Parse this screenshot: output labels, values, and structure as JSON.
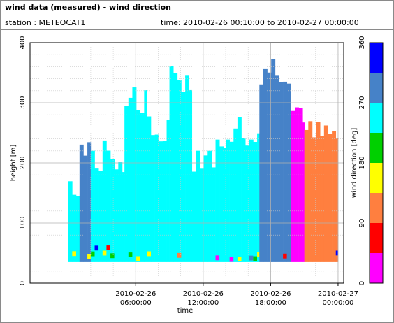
{
  "header": {
    "title": "wind data (measured) - wind direction",
    "station": "station : METEOCAT1",
    "time": "time: 2010-02-26 00:10:00 to 2010-02-27 00:00:00"
  },
  "chart_data": {
    "type": "heatmap",
    "ylabel": "height [m]",
    "xlabel": "time",
    "ylim": [
      0,
      400
    ],
    "yticks": [
      0,
      100,
      200,
      300,
      400
    ],
    "xlim_hours": [
      -3.4,
      24.5
    ],
    "xticks": [
      {
        "hour": 6,
        "line1": "2010-02-26",
        "line2": "06:00:00"
      },
      {
        "hour": 12,
        "line1": "2010-02-26",
        "line2": "12:00:00"
      },
      {
        "hour": 18,
        "line1": "2010-02-26",
        "line2": "18:00:00"
      },
      {
        "hour": 24,
        "line1": "2010-02-27",
        "line2": "00:00:00"
      }
    ],
    "grid": true,
    "colorbar": {
      "label": "wind direction [deg]",
      "min": 0,
      "max": 360,
      "ticks": [
        0,
        90,
        180,
        270,
        360
      ],
      "bands": [
        {
          "from": 0,
          "to": 45,
          "color": "#ff00ff"
        },
        {
          "from": 45,
          "to": 90,
          "color": "#ff0000"
        },
        {
          "from": 90,
          "to": 135,
          "color": "#ff7f3f"
        },
        {
          "from": 135,
          "to": 180,
          "color": "#ffff00"
        },
        {
          "from": 180,
          "to": 225,
          "color": "#00d000"
        },
        {
          "from": 225,
          "to": 270,
          "color": "#00ffff"
        },
        {
          "from": 270,
          "to": 315,
          "color": "#4682c8"
        },
        {
          "from": 315,
          "to": 360,
          "color": "#0000ff"
        }
      ]
    },
    "data_min_height_m": 35,
    "columns_approx": [
      {
        "from_h": 0.0,
        "to_h": 1.0,
        "top_m": 170,
        "dir": 250
      },
      {
        "from_h": 1.0,
        "to_h": 2.0,
        "top_m": 225,
        "dir": 300
      },
      {
        "from_h": 2.0,
        "to_h": 5.0,
        "top_m": 210,
        "dir": 250
      },
      {
        "from_h": 5.0,
        "to_h": 7.0,
        "top_m": 310,
        "dir": 250
      },
      {
        "from_h": 7.0,
        "to_h": 9.0,
        "top_m": 250,
        "dir": 250
      },
      {
        "from_h": 9.0,
        "to_h": 11.0,
        "top_m": 335,
        "dir": 250
      },
      {
        "from_h": 11.0,
        "to_h": 14.0,
        "top_m": 215,
        "dir": 250
      },
      {
        "from_h": 14.0,
        "to_h": 17.0,
        "top_m": 255,
        "dir": 250
      },
      {
        "from_h": 17.0,
        "to_h": 19.8,
        "top_m": 360,
        "dir": 300
      },
      {
        "from_h": 19.8,
        "to_h": 21.0,
        "top_m": 290,
        "dir": 20
      },
      {
        "from_h": 21.0,
        "to_h": 24.0,
        "top_m": 245,
        "dir": 110
      }
    ]
  }
}
